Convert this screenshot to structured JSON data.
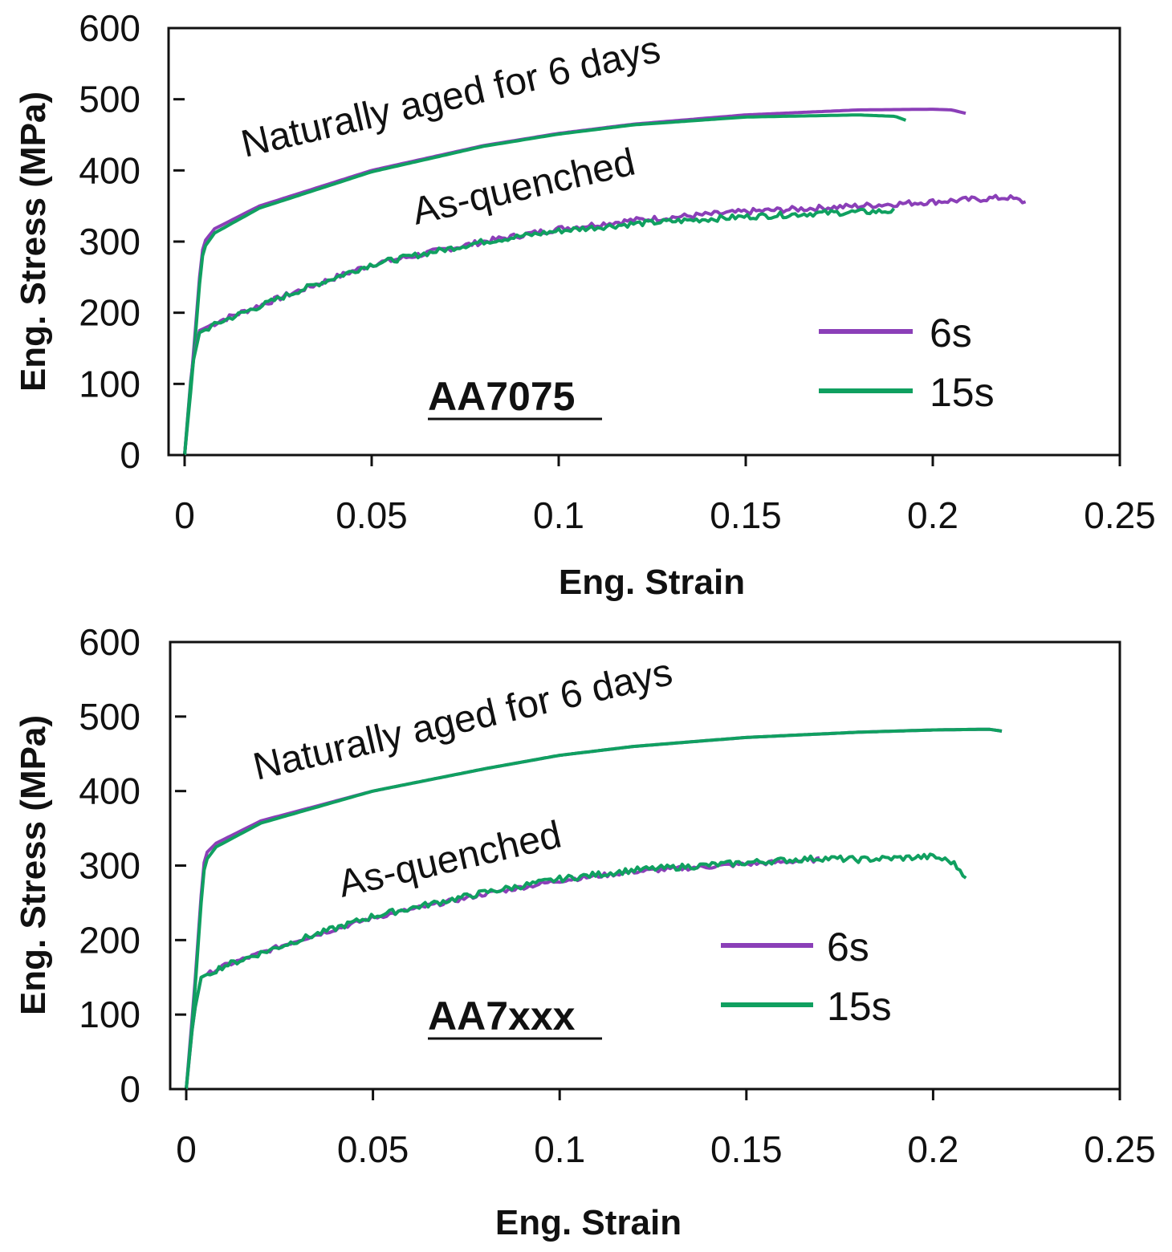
{
  "chart_data": [
    {
      "type": "line",
      "panel": "top",
      "alloy_label": "AA7075",
      "xlabel": "Eng. Strain",
      "ylabel": "Eng. Stress (MPa)",
      "xlim": [
        0,
        0.25
      ],
      "ylim": [
        0,
        600
      ],
      "x_ticks": [
        0,
        0.05,
        0.1,
        0.15,
        0.2,
        0.25
      ],
      "x_tick_labels": [
        "0",
        "0.05",
        "0.1",
        "0.15",
        "0.2",
        "0.25"
      ],
      "y_ticks": [
        0,
        100,
        200,
        300,
        400,
        500,
        600
      ],
      "y_tick_labels": [
        "0",
        "100",
        "200",
        "300",
        "400",
        "500",
        "600"
      ],
      "annotations": [
        "Naturally aged for 6 days",
        "As-quenched"
      ],
      "legend": [
        {
          "label": "6s",
          "color": "#8b3fb8"
        },
        {
          "label": "15s",
          "color": "#10a060"
        }
      ],
      "series": [
        {
          "name": "6s",
          "group": "Naturally aged for 6 days",
          "color": "#8b3fb8",
          "noise": 0,
          "points": [
            [
              0,
              0
            ],
            [
              0.002,
              120
            ],
            [
              0.004,
              250
            ],
            [
              0.005,
              298
            ],
            [
              0.008,
              318
            ],
            [
              0.02,
              350
            ],
            [
              0.05,
              400
            ],
            [
              0.08,
              435
            ],
            [
              0.1,
              452
            ],
            [
              0.12,
              465
            ],
            [
              0.15,
              478
            ],
            [
              0.18,
              485
            ],
            [
              0.2,
              486
            ],
            [
              0.205,
              485
            ],
            [
              0.209,
              480
            ]
          ]
        },
        {
          "name": "15s",
          "group": "Naturally aged for 6 days",
          "color": "#10a060",
          "noise": 0,
          "points": [
            [
              0,
              0
            ],
            [
              0.002,
              110
            ],
            [
              0.004,
              240
            ],
            [
              0.005,
              290
            ],
            [
              0.008,
              312
            ],
            [
              0.02,
              347
            ],
            [
              0.05,
              398
            ],
            [
              0.08,
              434
            ],
            [
              0.1,
              451
            ],
            [
              0.12,
              464
            ],
            [
              0.15,
              475
            ],
            [
              0.18,
              478
            ],
            [
              0.19,
              476
            ],
            [
              0.193,
              470
            ]
          ]
        },
        {
          "name": "6s",
          "group": "As-quenched",
          "color": "#8b3fb8",
          "noise": 4,
          "points": [
            [
              0,
              0
            ],
            [
              0.002,
              130
            ],
            [
              0.004,
              175
            ],
            [
              0.01,
              190
            ],
            [
              0.03,
              230
            ],
            [
              0.05,
              268
            ],
            [
              0.08,
              300
            ],
            [
              0.1,
              318
            ],
            [
              0.12,
              330
            ],
            [
              0.15,
              342
            ],
            [
              0.18,
              350
            ],
            [
              0.2,
              356
            ],
            [
              0.22,
              362
            ],
            [
              0.225,
              355
            ]
          ]
        },
        {
          "name": "15s",
          "group": "As-quenched",
          "color": "#10a060",
          "noise": 4,
          "points": [
            [
              0,
              0
            ],
            [
              0.002,
              125
            ],
            [
              0.004,
              172
            ],
            [
              0.01,
              188
            ],
            [
              0.03,
              230
            ],
            [
              0.05,
              268
            ],
            [
              0.08,
              300
            ],
            [
              0.1,
              315
            ],
            [
              0.12,
              325
            ],
            [
              0.15,
              335
            ],
            [
              0.17,
              340
            ],
            [
              0.19,
              343
            ]
          ]
        }
      ]
    },
    {
      "type": "line",
      "panel": "bottom",
      "alloy_label": "AA7xxx",
      "xlabel": "Eng. Strain",
      "ylabel": "Eng. Stress (MPa)",
      "xlim": [
        0,
        0.25
      ],
      "ylim": [
        0,
        600
      ],
      "x_ticks": [
        0,
        0.05,
        0.1,
        0.15,
        0.2,
        0.25
      ],
      "x_tick_labels": [
        "0",
        "0.05",
        "0.1",
        "0.15",
        "0.2",
        "0.25"
      ],
      "y_ticks": [
        0,
        100,
        200,
        300,
        400,
        500,
        600
      ],
      "y_tick_labels": [
        "0",
        "100",
        "200",
        "300",
        "400",
        "500",
        "600"
      ],
      "annotations": [
        "Naturally aged for 6 days",
        "As-quenched"
      ],
      "legend": [
        {
          "label": "6s",
          "color": "#8b3fb8"
        },
        {
          "label": "15s",
          "color": "#10a060"
        }
      ],
      "series": [
        {
          "name": "6s",
          "group": "Naturally aged for 6 days",
          "color": "#8b3fb8",
          "noise": 0,
          "points": [
            [
              0,
              0
            ],
            [
              0.002,
              120
            ],
            [
              0.004,
              260
            ],
            [
              0.005,
              315
            ],
            [
              0.008,
              330
            ],
            [
              0.02,
              360
            ],
            [
              0.05,
              400
            ],
            [
              0.08,
              430
            ],
            [
              0.1,
              448
            ],
            [
              0.12,
              460
            ],
            [
              0.15,
              472
            ],
            [
              0.18,
              479
            ],
            [
              0.2,
              482
            ],
            [
              0.215,
              483
            ],
            [
              0.219,
              480
            ]
          ]
        },
        {
          "name": "15s",
          "group": "Naturally aged for 6 days",
          "color": "#10a060",
          "noise": 0,
          "points": [
            [
              0,
              0
            ],
            [
              0.002,
              110
            ],
            [
              0.004,
              250
            ],
            [
              0.005,
              305
            ],
            [
              0.008,
              325
            ],
            [
              0.02,
              357
            ],
            [
              0.05,
              400
            ],
            [
              0.08,
              430
            ],
            [
              0.1,
              448
            ],
            [
              0.12,
              460
            ],
            [
              0.15,
              472
            ],
            [
              0.18,
              479
            ],
            [
              0.2,
              482
            ],
            [
              0.215,
              483
            ],
            [
              0.219,
              480
            ]
          ]
        },
        {
          "name": "6s",
          "group": "As-quenched",
          "color": "#8b3fb8",
          "noise": 3,
          "points": [
            [
              0,
              0
            ],
            [
              0.002,
              100
            ],
            [
              0.004,
              150
            ],
            [
              0.01,
              165
            ],
            [
              0.03,
              200
            ],
            [
              0.05,
              230
            ],
            [
              0.08,
              262
            ],
            [
              0.1,
              280
            ],
            [
              0.12,
              292
            ],
            [
              0.15,
              302
            ],
            [
              0.17,
              308
            ]
          ]
        },
        {
          "name": "15s",
          "group": "As-quenched",
          "color": "#10a060",
          "noise": 4,
          "points": [
            [
              0,
              0
            ],
            [
              0.002,
              100
            ],
            [
              0.004,
              150
            ],
            [
              0.01,
              165
            ],
            [
              0.03,
              200
            ],
            [
              0.05,
              232
            ],
            [
              0.08,
              264
            ],
            [
              0.1,
              282
            ],
            [
              0.12,
              294
            ],
            [
              0.15,
              304
            ],
            [
              0.17,
              310
            ],
            [
              0.18,
              308
            ],
            [
              0.2,
              312
            ],
            [
              0.205,
              305
            ],
            [
              0.209,
              285
            ]
          ]
        }
      ]
    }
  ]
}
